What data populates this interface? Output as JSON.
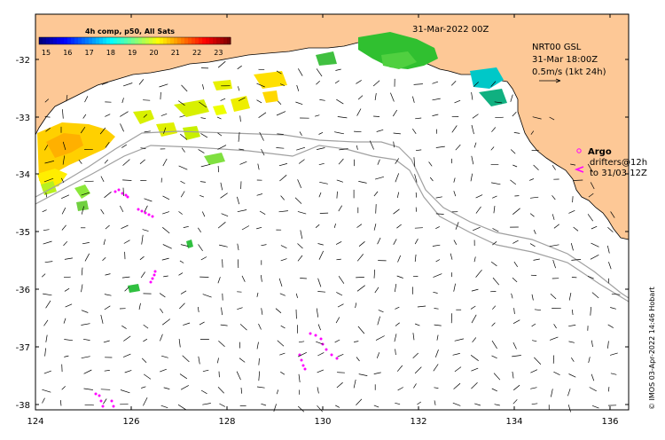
{
  "title": "31-Mar-2022 00Z",
  "colorbar": {
    "title": "4h comp, p50, All Sats",
    "labels": [
      "15",
      "16",
      "17",
      "18",
      "19",
      "20",
      "21",
      "22",
      "23"
    ],
    "colors": [
      "#00007f",
      "#0000ff",
      "#007fff",
      "#00ffff",
      "#7fff7f",
      "#ffff00",
      "#ff7f00",
      "#ff0000",
      "#7f0000"
    ]
  },
  "current_info": {
    "line1": "NRT00 GSL",
    "line2": "31-Mar 18:00Z",
    "line3": "0.5m/s (1kt 24h)"
  },
  "argo": {
    "label": "Argo",
    "drifters_line1": "drifters@12h",
    "drifters_line2": "to 31/03 12Z",
    "argo_color": "#ff00ff",
    "drifter_color": "#ff00ff"
  },
  "axes": {
    "x_ticks": [
      "124",
      "126",
      "128",
      "130",
      "132",
      "134",
      "136"
    ],
    "y_ticks": [
      "-32",
      "-33",
      "-34",
      "-35",
      "-36",
      "-37",
      "-38"
    ]
  },
  "credit": "© IMOS 03-Apr-2022 14:46 Hobart",
  "colors": {
    "land": "#fdc896",
    "sea": "#ffffff",
    "isobath": "#a0a0a0"
  }
}
